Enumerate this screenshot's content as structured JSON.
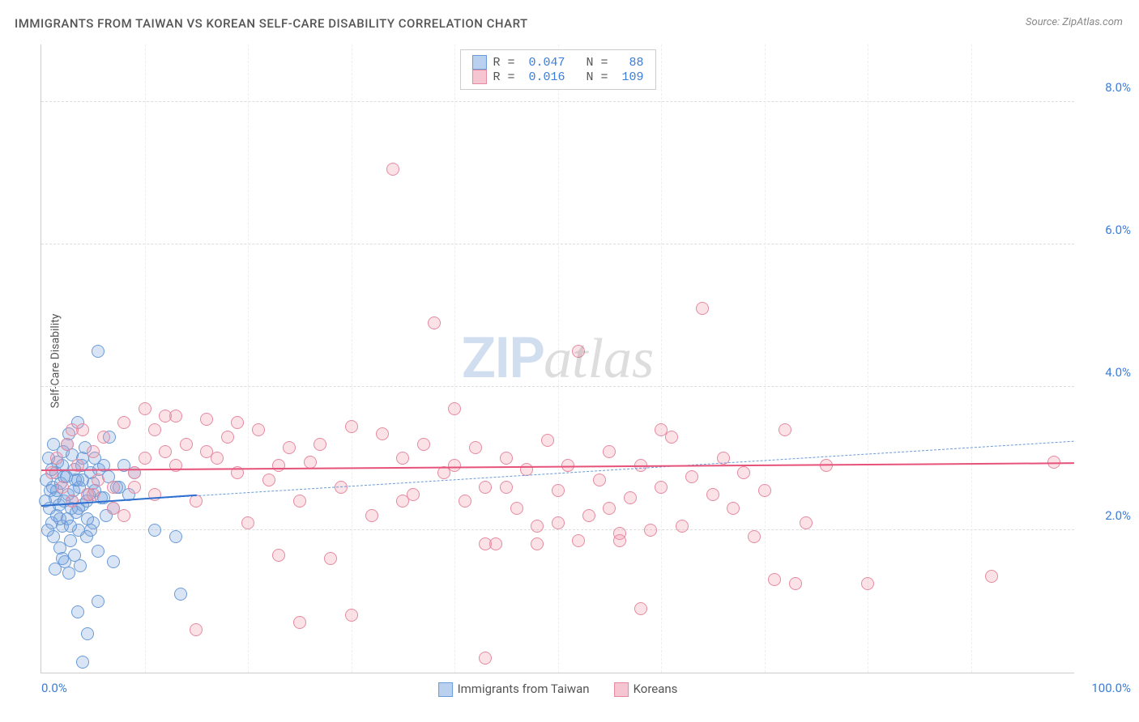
{
  "title": "IMMIGRANTS FROM TAIWAN VS KOREAN SELF-CARE DISABILITY CORRELATION CHART",
  "source": "Source: ZipAtlas.com",
  "ylabel": "Self-Care Disability",
  "watermark": {
    "part1": "ZIP",
    "part2": "atlas"
  },
  "chart": {
    "type": "scatter",
    "xlim": [
      0,
      100
    ],
    "ylim": [
      0,
      8.8
    ],
    "xticks": [
      {
        "v": 0,
        "label": "0.0%",
        "align": "left"
      },
      {
        "v": 100,
        "label": "100.0%",
        "align": "right"
      }
    ],
    "yticks": [
      {
        "v": 2,
        "label": "2.0%"
      },
      {
        "v": 4,
        "label": "4.0%"
      },
      {
        "v": 6,
        "label": "6.0%"
      },
      {
        "v": 8,
        "label": "8.0%"
      }
    ],
    "xgrid": [
      10,
      20,
      30,
      40,
      50,
      60,
      70,
      80,
      90
    ],
    "background_color": "#ffffff",
    "grid_color": "#dddddd",
    "marker_radius": 8,
    "marker_stroke_width": 1.2,
    "series": [
      {
        "name": "Immigrants from Taiwan",
        "fill": "rgba(120,160,220,0.28)",
        "stroke": "#6a9bd8",
        "legend_fill": "#b9d0ee",
        "legend_stroke": "#6a9bd8",
        "R": "0.047",
        "N": "88",
        "trend_solid": {
          "x1": 0,
          "y1": 2.35,
          "x2": 15,
          "y2": 2.5,
          "color": "#2e6fd0",
          "width": 2.5
        },
        "trend_dashed": {
          "x1": 0,
          "y1": 2.35,
          "x2": 100,
          "y2": 3.25,
          "color": "#6a9bd8",
          "width": 1,
          "dash": true
        },
        "points": [
          [
            0.4,
            2.4
          ],
          [
            0.5,
            2.7
          ],
          [
            0.6,
            2.0
          ],
          [
            0.7,
            3.0
          ],
          [
            0.8,
            2.3
          ],
          [
            0.9,
            2.55
          ],
          [
            1.0,
            2.1
          ],
          [
            1.1,
            2.6
          ],
          [
            1.2,
            1.9
          ],
          [
            1.3,
            2.45
          ],
          [
            1.4,
            2.8
          ],
          [
            1.5,
            2.2
          ],
          [
            1.6,
            2.95
          ],
          [
            1.7,
            2.35
          ],
          [
            1.8,
            1.75
          ],
          [
            1.9,
            2.65
          ],
          [
            2.0,
            2.05
          ],
          [
            2.1,
            3.1
          ],
          [
            2.2,
            2.4
          ],
          [
            2.3,
            1.55
          ],
          [
            2.4,
            2.75
          ],
          [
            2.5,
            2.15
          ],
          [
            2.6,
            2.5
          ],
          [
            2.7,
            3.35
          ],
          [
            2.8,
            1.85
          ],
          [
            2.9,
            2.3
          ],
          [
            3.0,
            3.05
          ],
          [
            3.1,
            2.55
          ],
          [
            3.2,
            1.65
          ],
          [
            3.3,
            2.7
          ],
          [
            3.4,
            2.25
          ],
          [
            3.5,
            3.5
          ],
          [
            3.6,
            2.0
          ],
          [
            3.7,
            2.6
          ],
          [
            3.8,
            1.5
          ],
          [
            3.9,
            2.9
          ],
          [
            4.0,
            2.35
          ],
          [
            4.2,
            3.15
          ],
          [
            4.4,
            1.9
          ],
          [
            4.6,
            2.5
          ],
          [
            4.8,
            2.8
          ],
          [
            5.0,
            2.1
          ],
          [
            5.2,
            3.0
          ],
          [
            5.5,
            1.7
          ],
          [
            5.8,
            2.45
          ],
          [
            6.0,
            2.9
          ],
          [
            6.3,
            2.2
          ],
          [
            6.6,
            3.3
          ],
          [
            7.0,
            1.55
          ],
          [
            7.3,
            2.6
          ],
          [
            5.5,
            4.5
          ],
          [
            1.0,
            2.85
          ],
          [
            1.2,
            3.2
          ],
          [
            1.5,
            2.55
          ],
          [
            2.0,
            2.9
          ],
          [
            2.5,
            3.2
          ],
          [
            3.0,
            2.4
          ],
          [
            3.5,
            2.7
          ],
          [
            4.0,
            3.0
          ],
          [
            4.5,
            2.15
          ],
          [
            5.0,
            2.65
          ],
          [
            1.8,
            2.15
          ],
          [
            2.2,
            2.75
          ],
          [
            2.8,
            2.05
          ],
          [
            3.2,
            2.85
          ],
          [
            3.6,
            2.3
          ],
          [
            4.0,
            2.7
          ],
          [
            4.4,
            2.4
          ],
          [
            4.8,
            2.0
          ],
          [
            5.2,
            2.55
          ],
          [
            5.6,
            2.85
          ],
          [
            6.0,
            2.45
          ],
          [
            6.5,
            2.75
          ],
          [
            7.0,
            2.3
          ],
          [
            7.5,
            2.6
          ],
          [
            8.0,
            2.9
          ],
          [
            8.5,
            2.5
          ],
          [
            9.0,
            2.8
          ],
          [
            1.3,
            1.45
          ],
          [
            2.0,
            1.6
          ],
          [
            2.7,
            1.4
          ],
          [
            3.5,
            0.85
          ],
          [
            4.5,
            0.55
          ],
          [
            4.0,
            0.15
          ],
          [
            5.5,
            1.0
          ],
          [
            11.0,
            2.0
          ],
          [
            13.0,
            1.9
          ],
          [
            13.5,
            1.1
          ]
        ]
      },
      {
        "name": "Koreans",
        "fill": "rgba(240,150,170,0.28)",
        "stroke": "#e68aa0",
        "legend_fill": "#f5c6d2",
        "legend_stroke": "#e68aa0",
        "R": "0.016",
        "N": "109",
        "trend_solid": {
          "x1": 0,
          "y1": 2.85,
          "x2": 100,
          "y2": 2.95,
          "color": "#e6527a",
          "width": 2.5
        },
        "points": [
          [
            1.0,
            2.8
          ],
          [
            1.5,
            3.0
          ],
          [
            2.0,
            2.6
          ],
          [
            2.5,
            3.2
          ],
          [
            3.0,
            2.4
          ],
          [
            3.5,
            2.9
          ],
          [
            4.0,
            3.4
          ],
          [
            4.5,
            2.5
          ],
          [
            5.0,
            3.1
          ],
          [
            5.5,
            2.7
          ],
          [
            6.0,
            3.3
          ],
          [
            7.0,
            2.3
          ],
          [
            8.0,
            3.5
          ],
          [
            9.0,
            2.8
          ],
          [
            10.0,
            3.0
          ],
          [
            11.0,
            2.5
          ],
          [
            12.0,
            3.6
          ],
          [
            13.0,
            2.9
          ],
          [
            14.0,
            3.2
          ],
          [
            15.0,
            2.4
          ],
          [
            16.0,
            3.55
          ],
          [
            17.0,
            3.0
          ],
          [
            18.0,
            3.3
          ],
          [
            19.0,
            3.5
          ],
          [
            20.0,
            2.1
          ],
          [
            21.0,
            3.4
          ],
          [
            22.0,
            2.7
          ],
          [
            23.0,
            2.9
          ],
          [
            24.0,
            3.15
          ],
          [
            25.0,
            2.4
          ],
          [
            26.0,
            2.95
          ],
          [
            27.0,
            3.2
          ],
          [
            28.0,
            1.6
          ],
          [
            29.0,
            2.6
          ],
          [
            30.0,
            3.45
          ],
          [
            32.0,
            2.2
          ],
          [
            33.0,
            3.35
          ],
          [
            34.0,
            7.05
          ],
          [
            35.0,
            3.0
          ],
          [
            36.0,
            2.5
          ],
          [
            37.0,
            3.2
          ],
          [
            38.0,
            4.9
          ],
          [
            39.0,
            2.8
          ],
          [
            40.0,
            3.7
          ],
          [
            41.0,
            2.4
          ],
          [
            42.0,
            3.15
          ],
          [
            43.0,
            2.6
          ],
          [
            44.0,
            1.8
          ],
          [
            45.0,
            3.0
          ],
          [
            46.0,
            2.3
          ],
          [
            47.0,
            2.85
          ],
          [
            48.0,
            2.05
          ],
          [
            49.0,
            3.25
          ],
          [
            50.0,
            2.55
          ],
          [
            51.0,
            2.9
          ],
          [
            52.0,
            4.5
          ],
          [
            53.0,
            2.2
          ],
          [
            54.0,
            2.7
          ],
          [
            55.0,
            3.1
          ],
          [
            56.0,
            1.95
          ],
          [
            57.0,
            2.45
          ],
          [
            58.0,
            2.9
          ],
          [
            59.0,
            2.0
          ],
          [
            60.0,
            2.6
          ],
          [
            61.0,
            3.3
          ],
          [
            62.0,
            2.05
          ],
          [
            63.0,
            2.75
          ],
          [
            64.0,
            5.1
          ],
          [
            65.0,
            2.5
          ],
          [
            66.0,
            3.0
          ],
          [
            67.0,
            2.3
          ],
          [
            68.0,
            2.8
          ],
          [
            69.0,
            1.9
          ],
          [
            70.0,
            2.55
          ],
          [
            72.0,
            3.4
          ],
          [
            74.0,
            2.1
          ],
          [
            71.0,
            1.3
          ],
          [
            73.0,
            1.25
          ],
          [
            80.0,
            1.25
          ],
          [
            58.0,
            0.9
          ],
          [
            43.0,
            0.2
          ],
          [
            15.0,
            0.6
          ],
          [
            25.0,
            0.7
          ],
          [
            30.0,
            0.8
          ],
          [
            23.0,
            1.65
          ],
          [
            43.0,
            1.8
          ],
          [
            48.0,
            1.8
          ],
          [
            52.0,
            1.85
          ],
          [
            56.0,
            1.85
          ],
          [
            76.0,
            2.9
          ],
          [
            98.0,
            2.95
          ],
          [
            92.0,
            1.35
          ],
          [
            13.0,
            3.6
          ],
          [
            10.0,
            3.7
          ],
          [
            16.0,
            3.1
          ],
          [
            19.0,
            2.8
          ],
          [
            35.0,
            2.4
          ],
          [
            40.0,
            2.9
          ],
          [
            45.0,
            2.6
          ],
          [
            50.0,
            2.1
          ],
          [
            55.0,
            2.3
          ],
          [
            60.0,
            3.4
          ],
          [
            8.0,
            2.2
          ],
          [
            9.0,
            2.6
          ],
          [
            11.0,
            3.4
          ],
          [
            12.0,
            3.1
          ],
          [
            3.0,
            3.4
          ],
          [
            5.0,
            2.5
          ],
          [
            7.0,
            2.6
          ]
        ]
      }
    ]
  }
}
